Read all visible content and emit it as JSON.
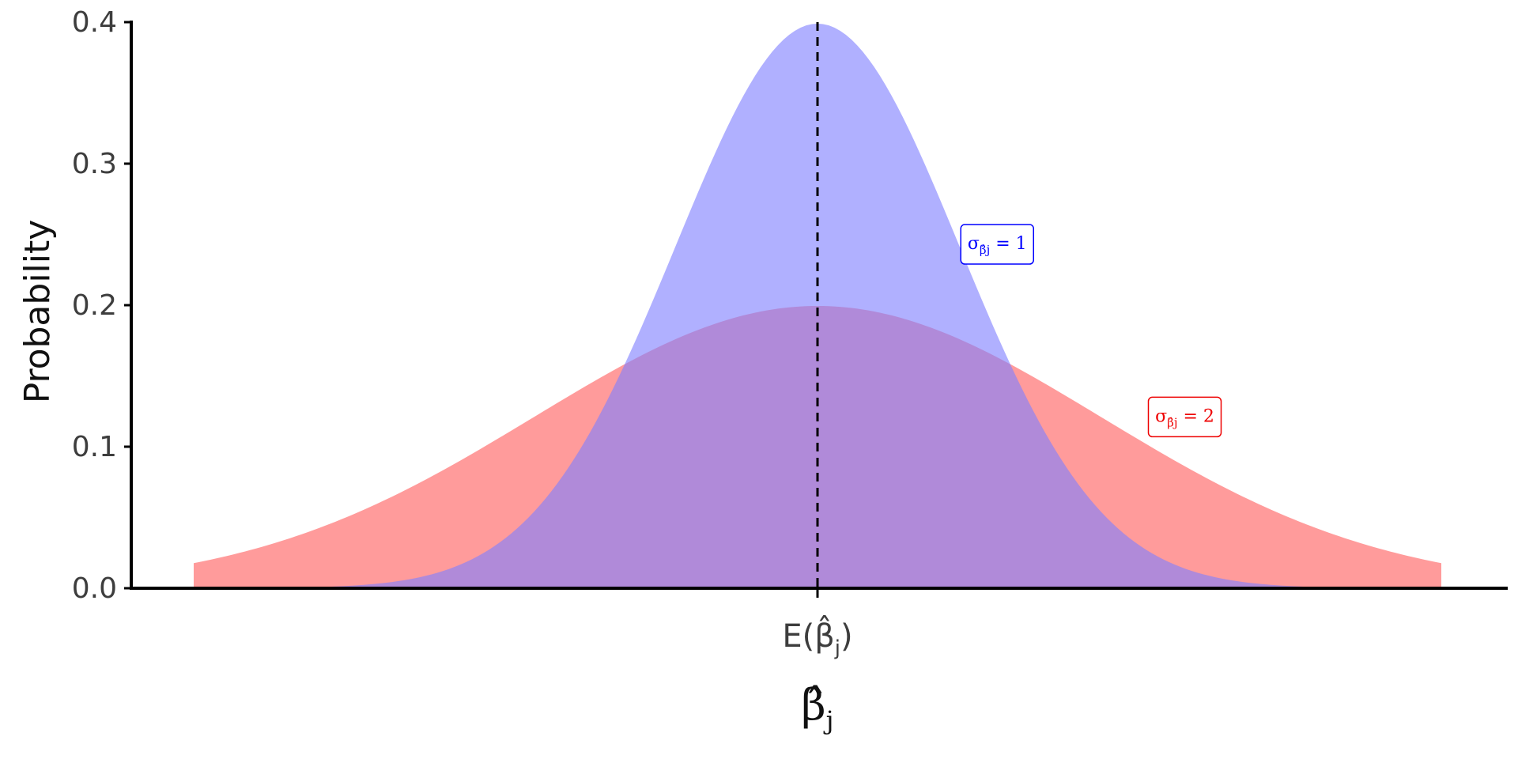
{
  "chart_data": {
    "type": "area",
    "xlabel": "β̂j",
    "ylabel": "Probability",
    "x_tick_label": "E(β̂j)",
    "ylim": [
      0,
      0.4
    ],
    "xlim": [
      -4.4,
      4.4
    ],
    "yticks": [
      0.0,
      0.1,
      0.2,
      0.3,
      0.4
    ],
    "grid": false,
    "vline": {
      "x": 0,
      "style": "dashed",
      "color": "#000000"
    },
    "series": [
      {
        "label": "σβ̂j = 1",
        "sd": 1,
        "color": "#0000ff",
        "fill": "#7f7fff",
        "label_x": 1.1,
        "label_y": 0.243
      },
      {
        "label": "σβ̂j = 2",
        "sd": 2,
        "color": "#ee0000",
        "fill": "#ff7f7f",
        "label_x": 2.2,
        "label_y": 0.121
      }
    ],
    "x": [
      -4.4,
      -4.0,
      -3.6,
      -3.2,
      -2.8,
      -2.4,
      -2.0,
      -1.6,
      -1.2,
      -0.8,
      -0.4,
      0.0,
      0.4,
      0.8,
      1.2,
      1.6,
      2.0,
      2.4,
      2.8,
      3.2,
      3.6,
      4.0,
      4.4
    ],
    "densities": {
      "sd1": [
        0.0,
        0.0001,
        0.0006,
        0.0024,
        0.0079,
        0.0224,
        0.054,
        0.1109,
        0.1942,
        0.2897,
        0.3683,
        0.3989,
        0.3683,
        0.2897,
        0.1942,
        0.1109,
        0.054,
        0.0224,
        0.0079,
        0.0024,
        0.0006,
        0.0001,
        0.0
      ],
      "sd2": [
        0.0177,
        0.027,
        0.0395,
        0.0555,
        0.0749,
        0.0971,
        0.121,
        0.1449,
        0.1666,
        0.1842,
        0.1955,
        0.1995,
        0.1955,
        0.1842,
        0.1666,
        0.1449,
        0.121,
        0.0971,
        0.0749,
        0.0555,
        0.0395,
        0.027,
        0.0177
      ]
    }
  }
}
